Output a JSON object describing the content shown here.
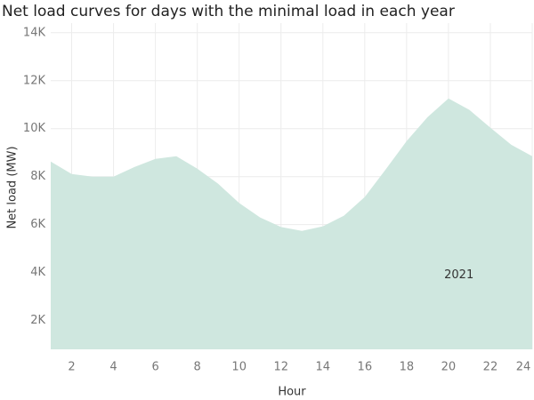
{
  "chart_data": {
    "type": "area",
    "title": "Net load curves for days with the minimal load in each year",
    "x_label": "Hour",
    "y_label": "Net load (MW)",
    "x": [
      1,
      2,
      3,
      4,
      5,
      6,
      7,
      8,
      9,
      10,
      11,
      12,
      13,
      14,
      15,
      16,
      17,
      18,
      19,
      20,
      21,
      22,
      23,
      24
    ],
    "series": [
      {
        "name": "2021",
        "color": "#cfe7df",
        "values": [
          8630,
          8110,
          8000,
          8000,
          8400,
          8740,
          8850,
          8330,
          7700,
          6900,
          6300,
          5900,
          5740,
          5930,
          6370,
          7150,
          8300,
          9480,
          10480,
          11260,
          10780,
          10040,
          9330,
          8850
        ]
      }
    ],
    "xlim": [
      1,
      24
    ],
    "ylim": [
      800,
      14400
    ],
    "xticks": [
      2,
      4,
      6,
      8,
      10,
      12,
      14,
      16,
      18,
      20,
      22,
      24
    ],
    "yticks": [
      {
        "value": 2000,
        "label": "2K"
      },
      {
        "value": 4000,
        "label": "4K"
      },
      {
        "value": 6000,
        "label": "6K"
      },
      {
        "value": 8000,
        "label": "8K"
      },
      {
        "value": 10000,
        "label": "10K"
      },
      {
        "value": 12000,
        "label": "12K"
      },
      {
        "value": 14000,
        "label": "14K"
      }
    ],
    "grid": true
  }
}
